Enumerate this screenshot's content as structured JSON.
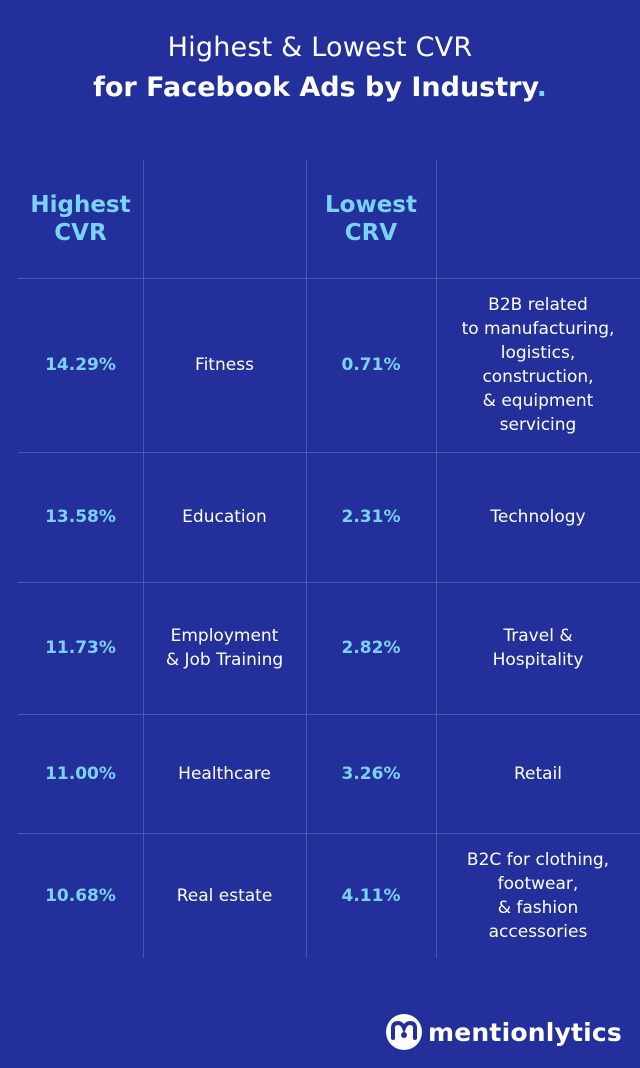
{
  "title": {
    "line1": "Highest & Lowest CVR",
    "line2": "for Facebook Ads by Industry",
    "line2_suffix": "."
  },
  "headers": {
    "highest": "Highest\nCVR",
    "lowest": "Lowest\nCRV"
  },
  "chart_data": {
    "type": "table",
    "columns": [
      "Highest CVR",
      "",
      "Lowest CRV",
      ""
    ],
    "rows": [
      {
        "high_value": "14.29%",
        "high_industry": "Fitness",
        "low_value": "0.71%",
        "low_industry": "B2B related\nto manufacturing,\nlogistics,\nconstruction,\n& equipment\nservicing"
      },
      {
        "high_value": "13.58%",
        "high_industry": "Education",
        "low_value": "2.31%",
        "low_industry": "Technology"
      },
      {
        "high_value": "11.73%",
        "high_industry": "Employment\n& Job Training",
        "low_value": "2.82%",
        "low_industry": "Travel &\nHospitality"
      },
      {
        "high_value": "11.00%",
        "high_industry": "Healthcare",
        "low_value": "3.26%",
        "low_industry": "Retail"
      },
      {
        "high_value": "10.68%",
        "high_industry": "Real estate",
        "low_value": "4.11%",
        "low_industry": "B2C for clothing,\nfootwear,\n& fashion\naccessories"
      }
    ]
  },
  "brand": {
    "name": "mentionlytics"
  },
  "colors": {
    "background": "#23309c",
    "accent": "#7ad2f4",
    "grid": "#4a57b3"
  }
}
